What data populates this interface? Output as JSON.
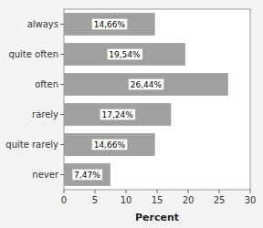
{
  "chart_data": {
    "type": "bar",
    "orientation": "horizontal",
    "categories": [
      "always",
      "quite often",
      "often",
      "rarely",
      "quite rarely",
      "never"
    ],
    "values": [
      14.66,
      19.54,
      26.44,
      17.24,
      14.66,
      7.47
    ],
    "value_labels": [
      "14,66%",
      "19,54%",
      "26,44%",
      "17,24%",
      "14,66%",
      "7,47%"
    ],
    "data_labels": true,
    "color": "#a0a0a0",
    "x_label": "Percent",
    "xlim": [
      0,
      30
    ],
    "xticks": [
      0,
      5,
      10,
      15,
      20,
      25,
      30
    ],
    "grid": false
  }
}
